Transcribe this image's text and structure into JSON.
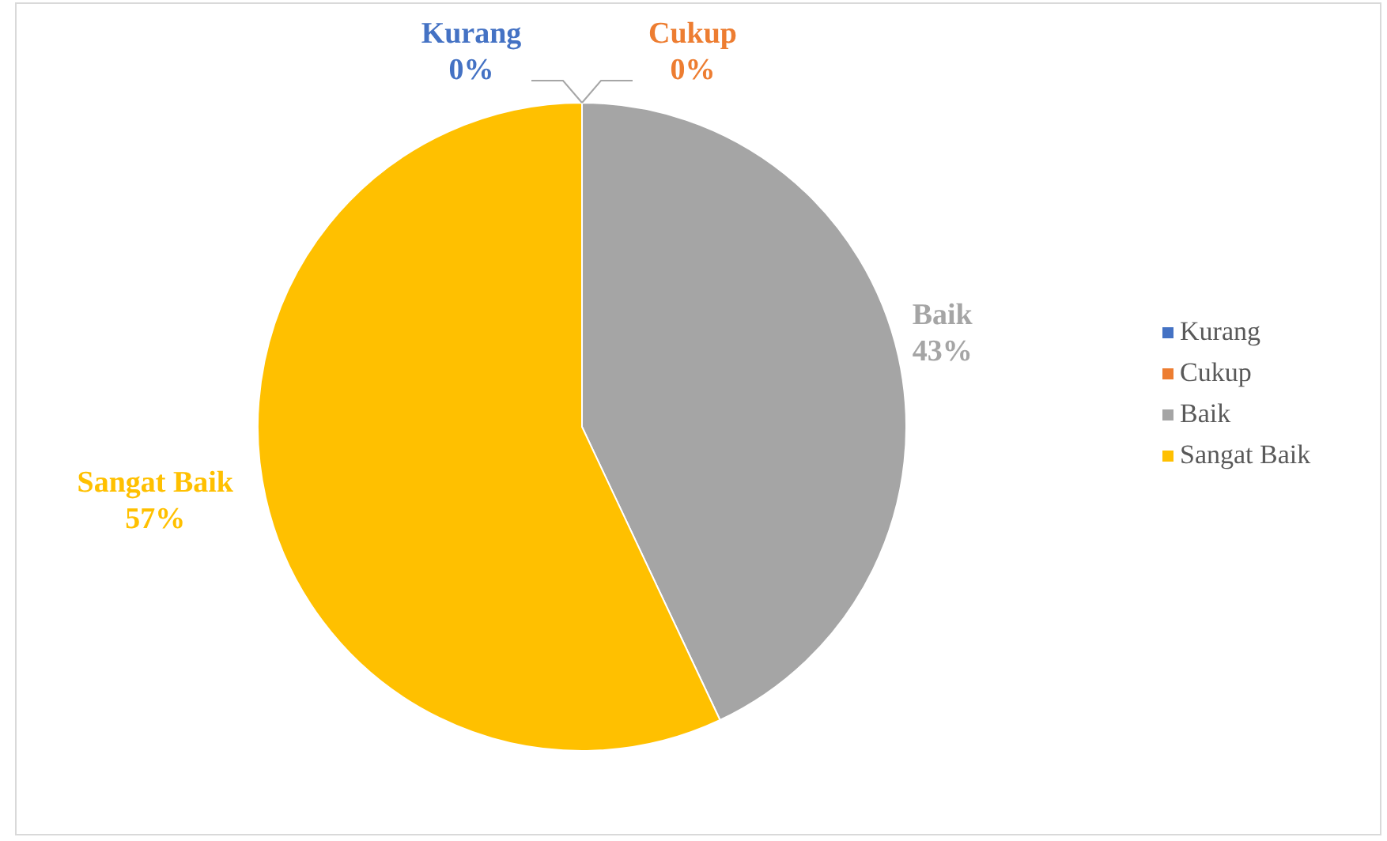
{
  "chart_data": {
    "type": "pie",
    "categories": [
      "Kurang",
      "Cukup",
      "Baik",
      "Sangat Baik"
    ],
    "values": [
      0,
      0,
      43,
      57
    ],
    "colors": [
      "#4472c4",
      "#ed7d31",
      "#a5a5a5",
      "#ffc000"
    ],
    "value_labels": [
      "0%",
      "0%",
      "43%",
      "57%"
    ],
    "legend": "right"
  }
}
